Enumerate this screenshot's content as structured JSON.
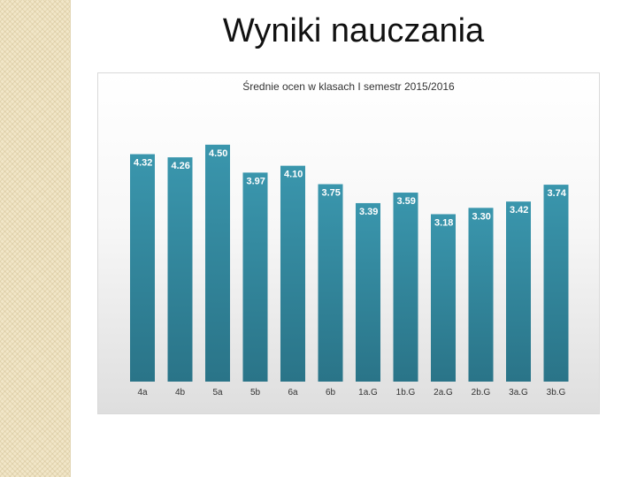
{
  "slide": {
    "title": "Wyniki nauczania"
  },
  "chart_data": {
    "type": "bar",
    "title": "Średnie ocen w klasach I semestr 2015/2016",
    "categories": [
      "4a",
      "4b",
      "5a",
      "5b",
      "6a",
      "6b",
      "1a.G",
      "1b.G",
      "2a.G",
      "2b.G",
      "3a.G",
      "3b.G"
    ],
    "values": [
      4.32,
      4.26,
      4.5,
      3.97,
      4.1,
      3.75,
      3.39,
      3.59,
      3.18,
      3.3,
      3.42,
      3.74
    ],
    "value_labels": [
      "4.32",
      "4.26",
      "4.50",
      "3.97",
      "4.10",
      "3.75",
      "3.39",
      "3.59",
      "3.18",
      "3.30",
      "3.42",
      "3.74"
    ],
    "grid": false,
    "legend": "none",
    "colors": {
      "bar_top": "#3a96ad",
      "bar_bottom": "#2a7488",
      "label": "#ffffff"
    }
  }
}
